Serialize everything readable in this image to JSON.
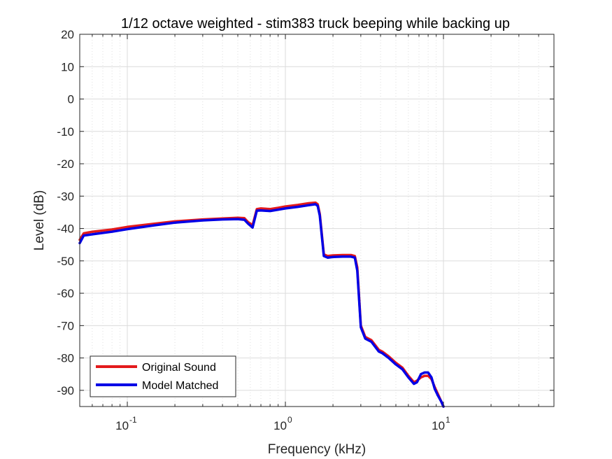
{
  "chart_data": {
    "type": "line",
    "title": "1/12 octave weighted - stim383 truck beeping while backing up",
    "xlabel": "Frequency (kHz)",
    "ylabel": "Level (dB)",
    "xscale": "log",
    "xlim": [
      0.05,
      50
    ],
    "ylim": [
      -95,
      20
    ],
    "grid": true,
    "minor_grid": true,
    "legend_position": "bottom-left",
    "x_tick_values": [
      0.1,
      1,
      10
    ],
    "x_tick_bases": [
      "10",
      "10",
      "10"
    ],
    "x_tick_exponents": [
      "-1",
      "0",
      "1"
    ],
    "y_tick_values": [
      20,
      10,
      0,
      -10,
      -20,
      -30,
      -40,
      -50,
      -60,
      -70,
      -80,
      -90
    ],
    "y_tick_labels": [
      "20",
      "10",
      "0",
      "-10",
      "-20",
      "-30",
      "-40",
      "-50",
      "-60",
      "-70",
      "-80",
      "-90"
    ],
    "series": [
      {
        "name": "Original Sound",
        "color": "#e31a1c",
        "x": [
          0.05,
          0.053,
          0.06,
          0.08,
          0.1,
          0.15,
          0.2,
          0.3,
          0.4,
          0.5,
          0.55,
          0.58,
          0.62,
          0.66,
          0.7,
          0.8,
          0.9,
          1.0,
          1.2,
          1.4,
          1.55,
          1.6,
          1.65,
          1.75,
          1.85,
          2.0,
          2.3,
          2.6,
          2.75,
          2.85,
          3.0,
          3.2,
          3.5,
          3.9,
          4.1,
          4.5,
          5.0,
          5.5,
          6.0,
          6.5,
          6.8,
          7.2,
          7.6,
          8.0,
          8.4,
          8.8,
          9.2,
          9.7,
          10.0
        ],
        "y": [
          -43.5,
          -41.5,
          -41.0,
          -40.3,
          -39.5,
          -38.5,
          -37.8,
          -37.2,
          -36.9,
          -36.7,
          -36.8,
          -38.0,
          -39.0,
          -34.0,
          -33.8,
          -34.0,
          -33.6,
          -33.2,
          -32.7,
          -32.2,
          -32.0,
          -32.5,
          -35.5,
          -48.0,
          -48.5,
          -48.3,
          -48.2,
          -48.2,
          -48.5,
          -52.0,
          -70.0,
          -73.5,
          -74.5,
          -77.5,
          -78.0,
          -79.5,
          -81.5,
          -83.0,
          -85.5,
          -87.5,
          -87.0,
          -86.0,
          -85.5,
          -85.5,
          -86.5,
          -89.0,
          -91.0,
          -93.5,
          -95.0
        ]
      },
      {
        "name": "Model Matched",
        "color": "#0000e6",
        "x": [
          0.05,
          0.053,
          0.06,
          0.08,
          0.1,
          0.15,
          0.2,
          0.3,
          0.4,
          0.5,
          0.55,
          0.58,
          0.62,
          0.66,
          0.7,
          0.8,
          0.9,
          1.0,
          1.2,
          1.4,
          1.55,
          1.6,
          1.65,
          1.75,
          1.85,
          2.0,
          2.3,
          2.6,
          2.75,
          2.85,
          3.0,
          3.2,
          3.5,
          3.9,
          4.1,
          4.5,
          5.0,
          5.5,
          6.0,
          6.5,
          6.8,
          7.2,
          7.6,
          8.0,
          8.4,
          8.8,
          9.2,
          9.7,
          10.0
        ],
        "y": [
          -44.5,
          -42.2,
          -41.8,
          -41.0,
          -40.2,
          -39.0,
          -38.2,
          -37.5,
          -37.2,
          -37.1,
          -37.3,
          -38.5,
          -39.7,
          -34.5,
          -34.4,
          -34.6,
          -34.2,
          -33.8,
          -33.3,
          -32.8,
          -32.5,
          -33.0,
          -36.0,
          -48.5,
          -49.0,
          -48.8,
          -48.7,
          -48.7,
          -49.0,
          -53.0,
          -70.5,
          -74.0,
          -75.0,
          -78.0,
          -78.5,
          -80.0,
          -82.0,
          -83.5,
          -86.0,
          -88.0,
          -87.5,
          -85.0,
          -84.5,
          -84.5,
          -86.0,
          -89.5,
          -91.5,
          -93.5,
          -95.0
        ]
      }
    ]
  }
}
